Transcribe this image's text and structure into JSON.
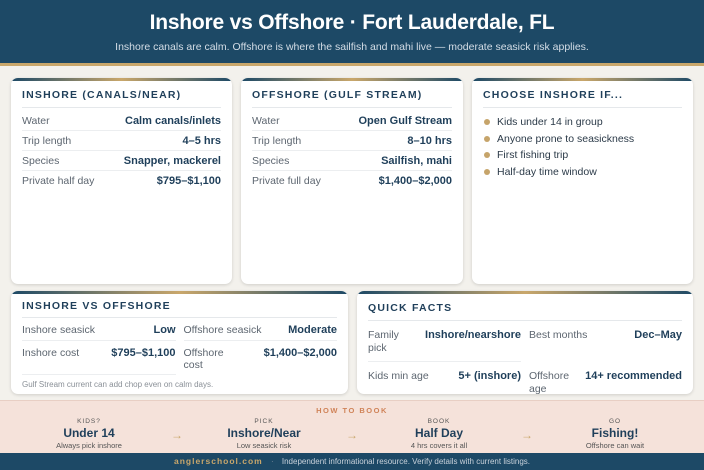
{
  "header": {
    "title": "Inshore vs Offshore · Fort Lauderdale, FL",
    "subtitle": "Inshore canals are calm. Offshore is where the sailfish and mahi live — moderate seasick risk applies."
  },
  "inshore": {
    "title": "INSHORE (CANALS/NEAR)",
    "rows": [
      {
        "label": "Water",
        "value": "Calm canals/inlets"
      },
      {
        "label": "Trip length",
        "value": "4–5 hrs"
      },
      {
        "label": "Species",
        "value": "Snapper, mackerel"
      },
      {
        "label": "Private half day",
        "value": "$795–$1,100"
      }
    ]
  },
  "offshore": {
    "title": "OFFSHORE (GULF STREAM)",
    "rows": [
      {
        "label": "Water",
        "value": "Open Gulf Stream"
      },
      {
        "label": "Trip length",
        "value": "8–10 hrs"
      },
      {
        "label": "Species",
        "value": "Sailfish, mahi"
      },
      {
        "label": "Private full day",
        "value": "$1,400–$2,000"
      }
    ]
  },
  "choose": {
    "title": "CHOOSE INSHORE IF...",
    "items": [
      "Kids under 14 in group",
      "Anyone prone to seasickness",
      "First fishing trip",
      "Half-day time window"
    ]
  },
  "compare": {
    "title": "INSHORE VS OFFSHORE",
    "cells": [
      {
        "label": "Inshore seasick",
        "value": "Low"
      },
      {
        "label": "Offshore seasick",
        "value": "Moderate"
      },
      {
        "label": "Inshore cost",
        "value": "$795–$1,100"
      },
      {
        "label": "Offshore cost",
        "value": "$1,400–$2,000"
      }
    ],
    "note": "Gulf Stream current can add chop even on calm days."
  },
  "facts": {
    "title": "QUICK FACTS",
    "cells": [
      {
        "label": "Family pick",
        "value": "Inshore/nearshore"
      },
      {
        "label": "Best months",
        "value": "Dec–May"
      },
      {
        "label": "Kids min age",
        "value": "5+ (inshore)"
      },
      {
        "label": "Offshore age",
        "value": "14+ recommended"
      }
    ]
  },
  "book": {
    "title": "HOW TO BOOK",
    "steps": [
      {
        "kicker": "KIDS?",
        "main": "Under 14",
        "sub": "Always pick inshore"
      },
      {
        "kicker": "PICK",
        "main": "Inshore/Near",
        "sub": "Low seasick risk"
      },
      {
        "kicker": "BOOK",
        "main": "Half Day",
        "sub": "4 hrs covers it all"
      },
      {
        "kicker": "GO",
        "main": "Fishing!",
        "sub": "Offshore can wait"
      }
    ],
    "arrow": "→"
  },
  "footer": {
    "brand": "anglerschool.com",
    "sep": "·",
    "text": "Independent informational resource. Verify details with current listings."
  }
}
